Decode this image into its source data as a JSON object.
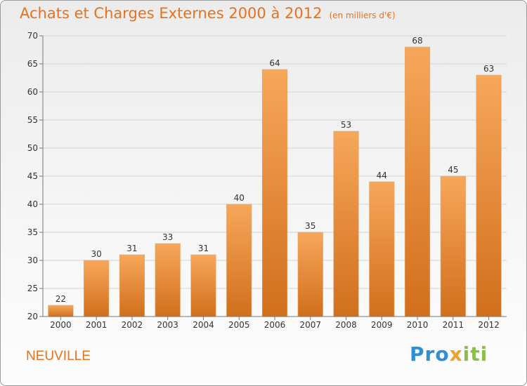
{
  "header": {
    "title": "Achats et Charges Externes 2000 à 2012",
    "unit": "(en milliers d'€)"
  },
  "footer": {
    "commune": "NEUVILLE",
    "logo_parts": [
      "Pro",
      "x",
      "iti"
    ]
  },
  "colors": {
    "accent": "#e8711e",
    "bar_top": "#f7a75a",
    "bar_bottom": "#d16f1c"
  },
  "chart_data": {
    "type": "bar",
    "categories": [
      "2000",
      "2001",
      "2002",
      "2003",
      "2004",
      "2005",
      "2006",
      "2007",
      "2008",
      "2009",
      "2010",
      "2011",
      "2012"
    ],
    "values": [
      22,
      30,
      31,
      33,
      31,
      40,
      64,
      35,
      53,
      44,
      68,
      45,
      63
    ],
    "ylim": [
      20,
      70
    ],
    "yticks": [
      20,
      25,
      30,
      35,
      40,
      45,
      50,
      55,
      60,
      65,
      70
    ],
    "grid": true,
    "title": "Achats et Charges Externes 2000 à 2012",
    "xlabel": "",
    "ylabel": ""
  }
}
